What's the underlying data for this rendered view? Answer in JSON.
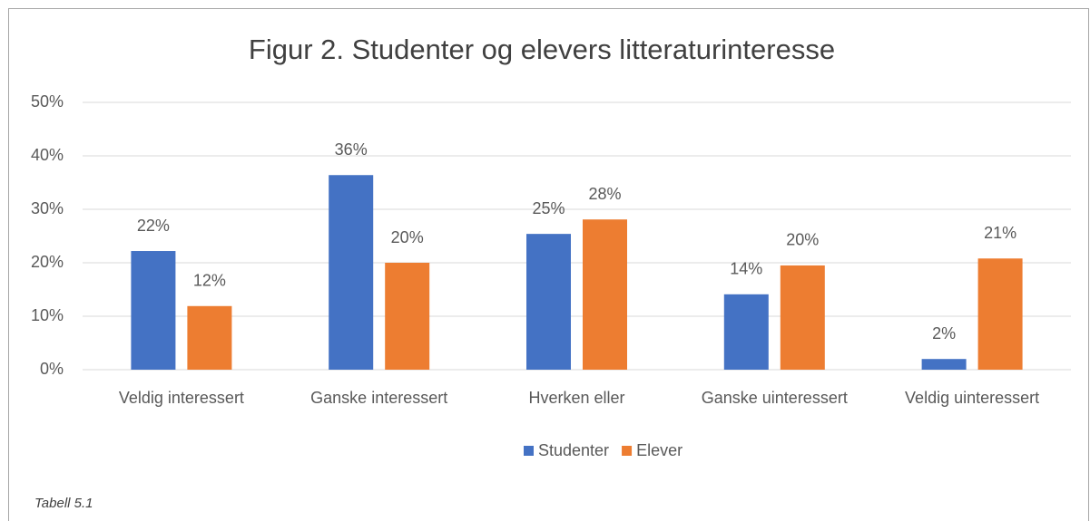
{
  "chart_data": {
    "type": "bar",
    "title": "Figur 2. Studenter og elevers litteraturinteresse",
    "categories": [
      "Veldig interessert",
      "Ganske interessert",
      "Hverken eller",
      "Ganske uinteressert",
      "Veldig uinteressert"
    ],
    "series": [
      {
        "name": "Studenter",
        "color": "#4472c4",
        "values": [
          22.2,
          36.4,
          25.4,
          14.1,
          2.0
        ],
        "value_labels": [
          "22%",
          "36%",
          "25%",
          "14%",
          "2%"
        ]
      },
      {
        "name": "Elever",
        "color": "#ed7d31",
        "values": [
          11.9,
          20.0,
          28.1,
          19.5,
          20.8
        ],
        "value_labels": [
          "12%",
          "20%",
          "28%",
          "20%",
          "21%"
        ]
      }
    ],
    "ylim": [
      0,
      50
    ],
    "yticks": [
      {
        "value": 0,
        "label": "0%"
      },
      {
        "value": 10,
        "label": "10%"
      },
      {
        "value": 20,
        "label": "20%"
      },
      {
        "value": 30,
        "label": "30%"
      },
      {
        "value": 40,
        "label": "40%"
      },
      {
        "value": 50,
        "label": "50%"
      }
    ],
    "grid": true,
    "legend": "bottom",
    "footnote": "Tabell 5.1"
  }
}
